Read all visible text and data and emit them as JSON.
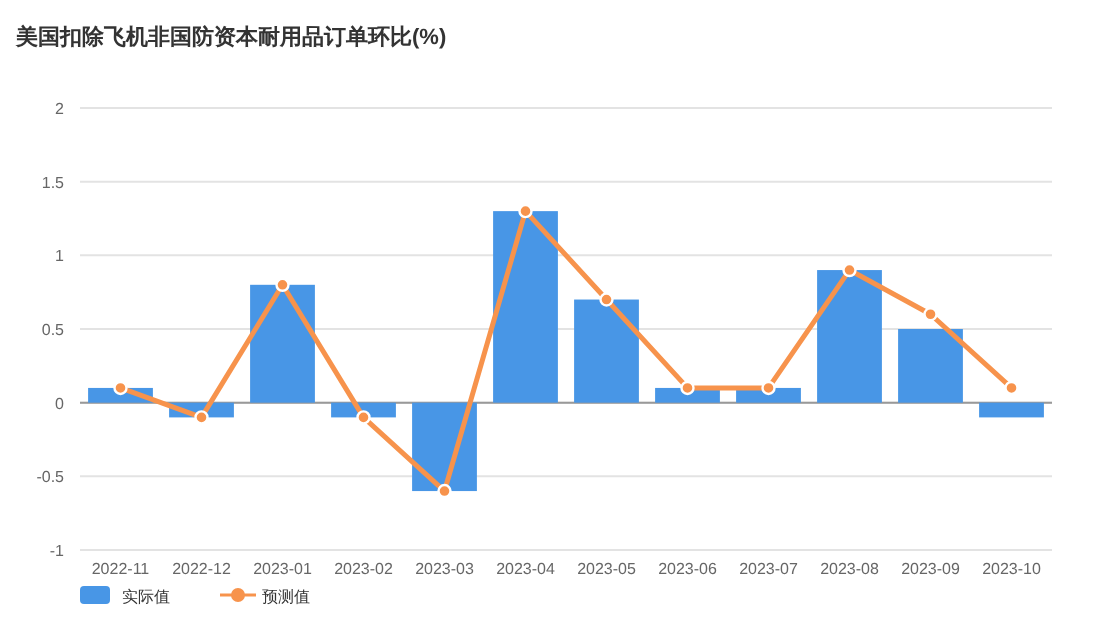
{
  "chart_data": {
    "type": "bar",
    "title": "美国扣除飞机非国防资本耐用品订单环比(%)",
    "categories": [
      "2022-11",
      "2022-12",
      "2023-01",
      "2023-02",
      "2023-03",
      "2023-04",
      "2023-05",
      "2023-06",
      "2023-07",
      "2023-08",
      "2023-09",
      "2023-10"
    ],
    "series": [
      {
        "name": "实际值",
        "color": "#4896e6",
        "values": [
          0.1,
          -0.1,
          0.8,
          -0.1,
          -0.6,
          1.3,
          0.7,
          0.1,
          0.1,
          0.9,
          0.5,
          -0.1
        ]
      },
      {
        "name": "预测值",
        "type": "line",
        "color": "#f7934c",
        "marker": "circle",
        "values": [
          0.1,
          -0.1,
          0.8,
          -0.1,
          -0.6,
          1.3,
          0.7,
          0.1,
          0.1,
          0.9,
          0.6,
          0.1
        ]
      }
    ],
    "ylim": [
      -1,
      2
    ],
    "yticks": [
      -1,
      -0.5,
      0,
      0.5,
      1,
      1.5,
      2
    ],
    "grid": "y",
    "legend": "bottom left"
  }
}
